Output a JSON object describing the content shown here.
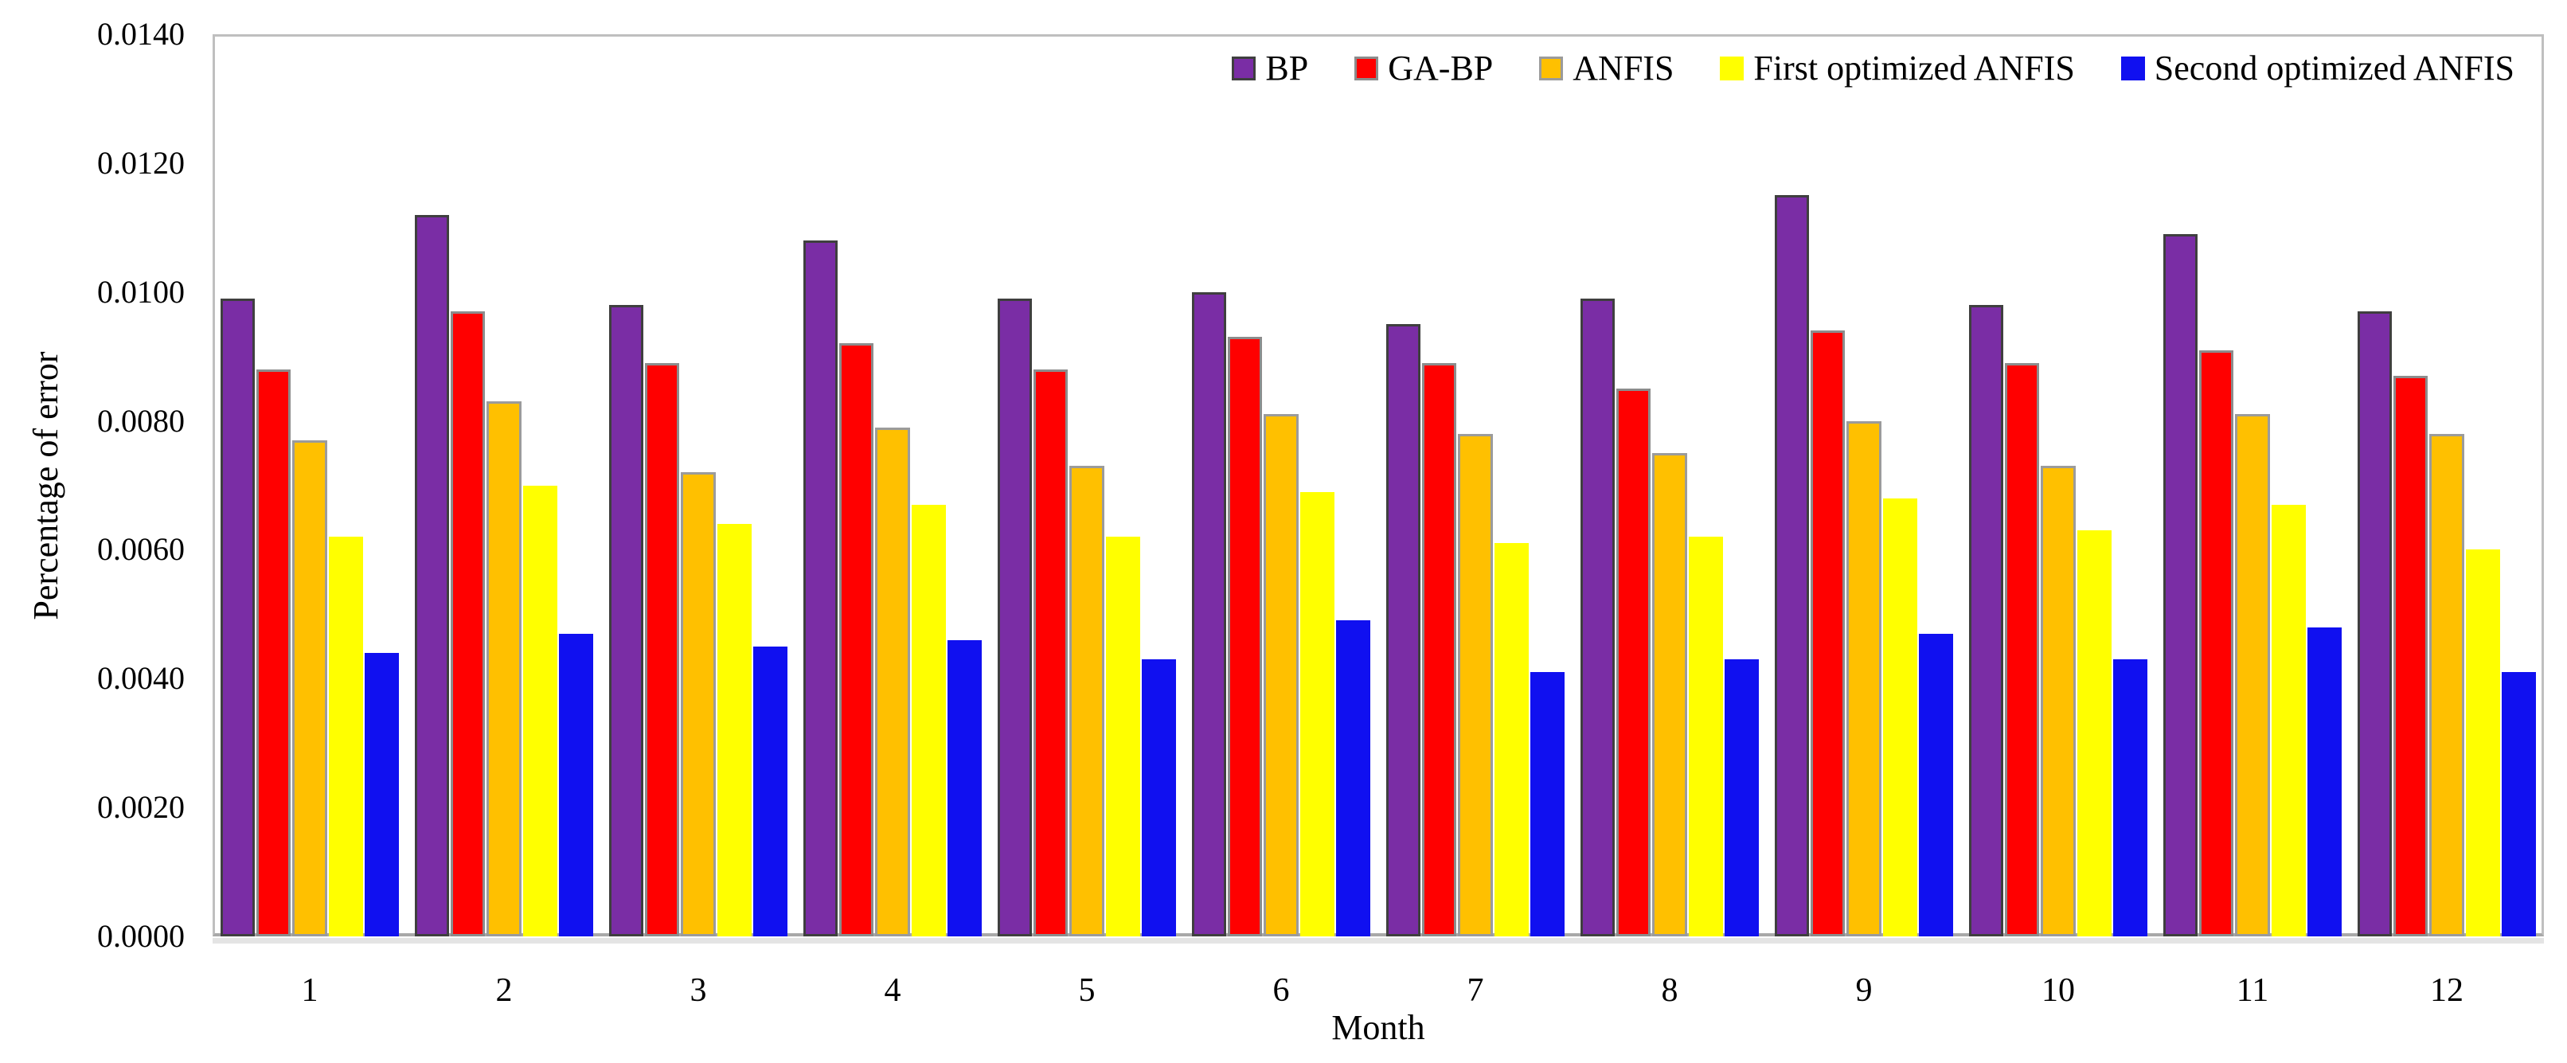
{
  "figure": {
    "background": "#ffffff",
    "frame_color": "#bfbfbf",
    "axis_shadow_color": "#a8a8a8"
  },
  "chart_data": {
    "type": "bar",
    "title": "",
    "xlabel": "Month",
    "ylabel": "Percentage of error",
    "categories": [
      "1",
      "2",
      "3",
      "4",
      "5",
      "6",
      "7",
      "8",
      "9",
      "10",
      "11",
      "12"
    ],
    "ylim": [
      0.0,
      0.014
    ],
    "ytick_labels": [
      "0.0000",
      "0.0020",
      "0.0040",
      "0.0060",
      "0.0080",
      "0.0100",
      "0.0120",
      "0.0140"
    ],
    "grid": false,
    "legend_position": "top-right-inside-row",
    "series": [
      {
        "name": "BP",
        "color": "#7A2DA5",
        "border_color": "#3F3F3F",
        "values": [
          0.0099,
          0.0112,
          0.0098,
          0.0108,
          0.0099,
          0.01,
          0.0095,
          0.0099,
          0.0115,
          0.0098,
          0.0109,
          0.0097
        ]
      },
      {
        "name": "GA-BP",
        "color": "#FF0000",
        "border_color": "#8C8C8C",
        "values": [
          0.0088,
          0.0097,
          0.0089,
          0.0092,
          0.0088,
          0.0093,
          0.0089,
          0.0085,
          0.0094,
          0.0089,
          0.0091,
          0.0087
        ]
      },
      {
        "name": "ANFIS",
        "color": "#FFC000",
        "border_color": "#9B9B9B",
        "values": [
          0.0077,
          0.0083,
          0.0072,
          0.0079,
          0.0073,
          0.0081,
          0.0078,
          0.0075,
          0.008,
          0.0073,
          0.0081,
          0.0078
        ]
      },
      {
        "name": "First optimized ANFIS",
        "color": "#FFFF00",
        "border_color": "",
        "values": [
          0.0062,
          0.007,
          0.0064,
          0.0067,
          0.0062,
          0.0069,
          0.0061,
          0.0062,
          0.0068,
          0.0063,
          0.0067,
          0.006
        ]
      },
      {
        "name": "Second optimized ANFIS",
        "color": "#1010F0",
        "border_color": "",
        "values": [
          0.0044,
          0.0047,
          0.0045,
          0.0046,
          0.0043,
          0.0049,
          0.0041,
          0.0043,
          0.0047,
          0.0043,
          0.0048,
          0.0041
        ]
      }
    ]
  }
}
